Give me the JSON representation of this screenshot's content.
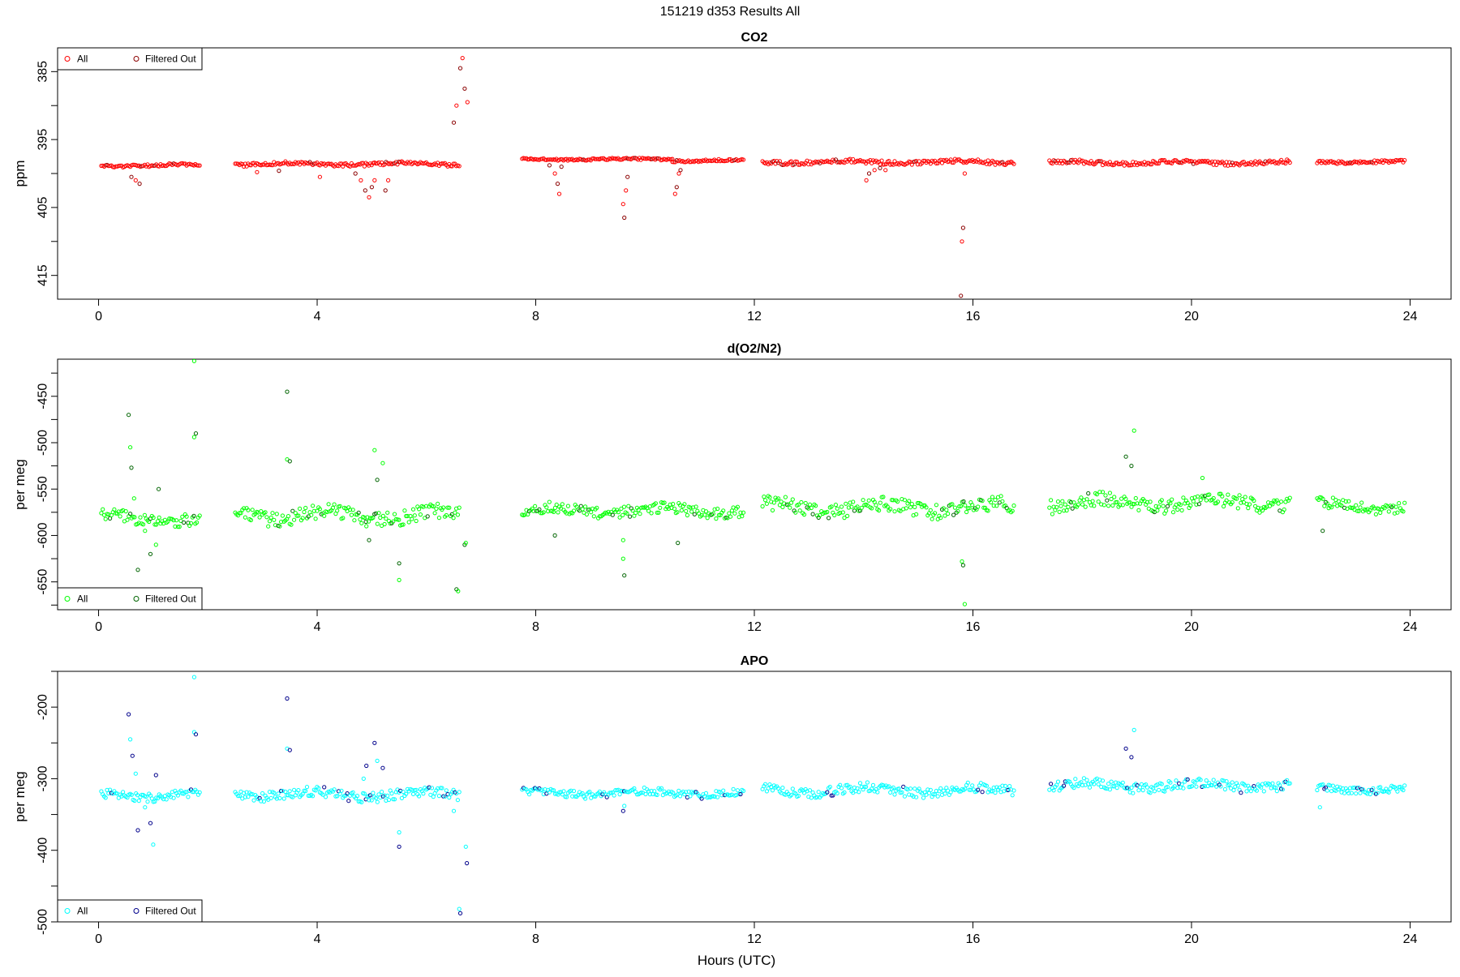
{
  "figure": {
    "title": "151219   d353   Results All",
    "xlabel": "Hours (UTC)"
  },
  "colors": {
    "co2_all": "#ff0000",
    "co2_filtered": "#8b0000",
    "o2_all": "#00ff00",
    "o2_filtered": "#006400",
    "apo_all": "#00ffff",
    "apo_filtered": "#00008b"
  },
  "chart_data": [
    {
      "type": "scatter",
      "title": "CO2",
      "ylabel": "ppm",
      "xlim": [
        -0.75,
        24.75
      ],
      "ylim": [
        381.5,
        418.5
      ],
      "y_reversed": true,
      "x_ticks": [
        0,
        4,
        8,
        12,
        16,
        20,
        24
      ],
      "y_ticks": [
        385,
        395,
        405,
        415
      ],
      "grid": false,
      "legend": {
        "position": "top-left",
        "entries": [
          "All",
          "Filtered Out"
        ]
      },
      "segments": [
        {
          "start": 0.05,
          "end": 1.85,
          "base": 398.8,
          "noise": 0.2
        },
        {
          "start": 2.5,
          "end": 6.6,
          "base": 398.6,
          "noise": 0.25
        },
        {
          "start": 7.75,
          "end": 10.5,
          "base": 397.9,
          "noise": 0.15
        },
        {
          "start": 10.5,
          "end": 11.8,
          "base": 398.1,
          "noise": 0.15
        },
        {
          "start": 12.15,
          "end": 16.75,
          "base": 398.3,
          "noise": 0.3
        },
        {
          "start": 17.4,
          "end": 21.8,
          "base": 398.4,
          "noise": 0.3
        },
        {
          "start": 22.3,
          "end": 23.9,
          "base": 398.3,
          "noise": 0.2
        }
      ],
      "outliers": [
        {
          "x": 0.6,
          "y": 400.5
        },
        {
          "x": 0.68,
          "y": 401.0
        },
        {
          "x": 0.75,
          "y": 401.5
        },
        {
          "x": 2.9,
          "y": 399.8
        },
        {
          "x": 3.3,
          "y": 399.6
        },
        {
          "x": 4.05,
          "y": 400.5
        },
        {
          "x": 4.7,
          "y": 400.0
        },
        {
          "x": 4.8,
          "y": 401.0
        },
        {
          "x": 4.88,
          "y": 402.5
        },
        {
          "x": 4.95,
          "y": 403.5
        },
        {
          "x": 5.0,
          "y": 402.0
        },
        {
          "x": 5.05,
          "y": 401.0
        },
        {
          "x": 5.25,
          "y": 402.5
        },
        {
          "x": 5.3,
          "y": 401.0
        },
        {
          "x": 6.5,
          "y": 392.5
        },
        {
          "x": 6.55,
          "y": 390.0
        },
        {
          "x": 6.62,
          "y": 384.5
        },
        {
          "x": 6.66,
          "y": 383.0
        },
        {
          "x": 6.7,
          "y": 387.5
        },
        {
          "x": 6.75,
          "y": 389.5
        },
        {
          "x": 8.25,
          "y": 398.8
        },
        {
          "x": 8.35,
          "y": 400.0
        },
        {
          "x": 8.4,
          "y": 401.5
        },
        {
          "x": 8.43,
          "y": 403.0
        },
        {
          "x": 8.47,
          "y": 399.0
        },
        {
          "x": 9.6,
          "y": 404.5
        },
        {
          "x": 9.62,
          "y": 406.5
        },
        {
          "x": 9.65,
          "y": 402.5
        },
        {
          "x": 9.68,
          "y": 400.5
        },
        {
          "x": 10.55,
          "y": 403.0
        },
        {
          "x": 10.58,
          "y": 402.0
        },
        {
          "x": 10.62,
          "y": 400.0
        },
        {
          "x": 10.65,
          "y": 399.5
        },
        {
          "x": 14.05,
          "y": 401.0
        },
        {
          "x": 14.1,
          "y": 400.0
        },
        {
          "x": 14.2,
          "y": 399.5
        },
        {
          "x": 14.3,
          "y": 399.2
        },
        {
          "x": 14.4,
          "y": 399.5
        },
        {
          "x": 15.78,
          "y": 418.0
        },
        {
          "x": 15.8,
          "y": 410.0
        },
        {
          "x": 15.82,
          "y": 408.0
        },
        {
          "x": 15.85,
          "y": 400.0
        }
      ]
    },
    {
      "type": "scatter",
      "title": "d(O2/N2)",
      "ylabel": "per meg",
      "xlim": [
        -0.75,
        24.75
      ],
      "ylim": [
        -680,
        -410
      ],
      "x_ticks": [
        0,
        4,
        8,
        12,
        16,
        20,
        24
      ],
      "y_ticks": [
        -450,
        -500,
        -550,
        -600,
        -650
      ],
      "grid": false,
      "legend": {
        "position": "bottom-left",
        "entries": [
          "All",
          "Filtered Out"
        ]
      },
      "segments": [
        {
          "start": 0.05,
          "end": 1.85,
          "base": -582,
          "noise": 7
        },
        {
          "start": 2.5,
          "end": 6.6,
          "base": -578,
          "noise": 8
        },
        {
          "start": 7.75,
          "end": 11.8,
          "base": -573,
          "noise": 6
        },
        {
          "start": 12.15,
          "end": 16.75,
          "base": -570,
          "noise": 8
        },
        {
          "start": 17.4,
          "end": 21.8,
          "base": -565,
          "noise": 8
        },
        {
          "start": 22.3,
          "end": 23.9,
          "base": -568,
          "noise": 6
        }
      ],
      "outliers": [
        {
          "x": 0.55,
          "y": -470
        },
        {
          "x": 0.58,
          "y": -505
        },
        {
          "x": 0.6,
          "y": -527
        },
        {
          "x": 0.65,
          "y": -560
        },
        {
          "x": 0.72,
          "y": -637
        },
        {
          "x": 0.85,
          "y": -595
        },
        {
          "x": 0.95,
          "y": -620
        },
        {
          "x": 1.05,
          "y": -610
        },
        {
          "x": 1.1,
          "y": -550
        },
        {
          "x": 1.75,
          "y": -494
        },
        {
          "x": 1.78,
          "y": -490
        },
        {
          "x": 1.75,
          "y": -412
        },
        {
          "x": 3.45,
          "y": -445
        },
        {
          "x": 3.45,
          "y": -518
        },
        {
          "x": 3.5,
          "y": -520
        },
        {
          "x": 4.9,
          "y": -590
        },
        {
          "x": 4.95,
          "y": -605
        },
        {
          "x": 5.05,
          "y": -508
        },
        {
          "x": 5.1,
          "y": -540
        },
        {
          "x": 5.2,
          "y": -522
        },
        {
          "x": 5.5,
          "y": -630
        },
        {
          "x": 5.5,
          "y": -648
        },
        {
          "x": 6.55,
          "y": -658
        },
        {
          "x": 6.58,
          "y": -660
        },
        {
          "x": 6.7,
          "y": -610
        },
        {
          "x": 6.72,
          "y": -608
        },
        {
          "x": 8.35,
          "y": -600
        },
        {
          "x": 9.6,
          "y": -625
        },
        {
          "x": 9.62,
          "y": -643
        },
        {
          "x": 9.6,
          "y": -605
        },
        {
          "x": 10.6,
          "y": -608
        },
        {
          "x": 15.8,
          "y": -628
        },
        {
          "x": 15.82,
          "y": -632
        },
        {
          "x": 15.85,
          "y": -674
        },
        {
          "x": 18.8,
          "y": -515
        },
        {
          "x": 18.95,
          "y": -487
        },
        {
          "x": 18.9,
          "y": -525
        },
        {
          "x": 20.2,
          "y": -538
        },
        {
          "x": 22.4,
          "y": -595
        }
      ]
    },
    {
      "type": "scatter",
      "title": "APO",
      "ylabel": "per meg",
      "xlim": [
        -0.75,
        24.75
      ],
      "ylim": [
        -500,
        -150
      ],
      "x_ticks": [
        0,
        4,
        8,
        12,
        16,
        20,
        24
      ],
      "y_ticks": [
        -200,
        -300,
        -400,
        -500
      ],
      "grid": false,
      "legend": {
        "position": "bottom-left",
        "entries": [
          "All",
          "Filtered Out"
        ]
      },
      "segments": [
        {
          "start": 0.05,
          "end": 1.85,
          "base": -323,
          "noise": 6
        },
        {
          "start": 2.5,
          "end": 6.6,
          "base": -322,
          "noise": 7
        },
        {
          "start": 7.75,
          "end": 11.8,
          "base": -320,
          "noise": 5
        },
        {
          "start": 12.15,
          "end": 16.75,
          "base": -316,
          "noise": 7
        },
        {
          "start": 17.4,
          "end": 21.8,
          "base": -310,
          "noise": 7
        },
        {
          "start": 22.3,
          "end": 23.9,
          "base": -314,
          "noise": 5
        }
      ],
      "outliers": [
        {
          "x": 0.55,
          "y": -210
        },
        {
          "x": 0.58,
          "y": -245
        },
        {
          "x": 0.62,
          "y": -268
        },
        {
          "x": 0.68,
          "y": -293
        },
        {
          "x": 0.72,
          "y": -372
        },
        {
          "x": 0.85,
          "y": -340
        },
        {
          "x": 0.95,
          "y": -362
        },
        {
          "x": 1.0,
          "y": -392
        },
        {
          "x": 1.05,
          "y": -295
        },
        {
          "x": 1.75,
          "y": -235
        },
        {
          "x": 1.78,
          "y": -238
        },
        {
          "x": 1.75,
          "y": -158
        },
        {
          "x": 3.45,
          "y": -188
        },
        {
          "x": 3.45,
          "y": -258
        },
        {
          "x": 3.5,
          "y": -260
        },
        {
          "x": 4.85,
          "y": -300
        },
        {
          "x": 4.9,
          "y": -282
        },
        {
          "x": 4.95,
          "y": -330
        },
        {
          "x": 5.05,
          "y": -250
        },
        {
          "x": 5.1,
          "y": -275
        },
        {
          "x": 5.2,
          "y": -285
        },
        {
          "x": 5.5,
          "y": -375
        },
        {
          "x": 5.5,
          "y": -395
        },
        {
          "x": 6.6,
          "y": -482
        },
        {
          "x": 6.62,
          "y": -488
        },
        {
          "x": 6.72,
          "y": -395
        },
        {
          "x": 6.74,
          "y": -418
        },
        {
          "x": 6.5,
          "y": -345
        },
        {
          "x": 9.6,
          "y": -345
        },
        {
          "x": 9.62,
          "y": -338
        },
        {
          "x": 18.8,
          "y": -258
        },
        {
          "x": 18.95,
          "y": -232
        },
        {
          "x": 18.9,
          "y": -270
        },
        {
          "x": 22.35,
          "y": -340
        }
      ]
    }
  ]
}
